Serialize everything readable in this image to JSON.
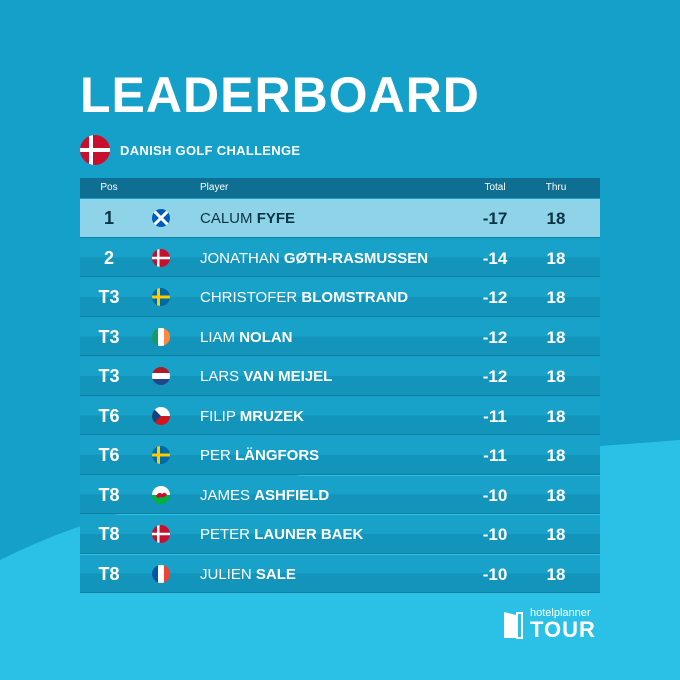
{
  "header": {
    "title": "LEADERBOARD",
    "event_name": "DANISH GOLF CHALLENGE",
    "event_flag": "denmark"
  },
  "columns": {
    "pos": "Pos",
    "player": "Player",
    "total": "Total",
    "thru": "Thru"
  },
  "rows": [
    {
      "pos": "1",
      "flag": "scotland",
      "first": "CALUM",
      "last": "FYFE",
      "total": "-17",
      "thru": "18",
      "highlighted": true
    },
    {
      "pos": "2",
      "flag": "denmark",
      "first": "JONATHAN",
      "last": "GØTH-RASMUSSEN",
      "total": "-14",
      "thru": "18"
    },
    {
      "pos": "T3",
      "flag": "sweden",
      "first": "CHRISTOFER",
      "last": "BLOMSTRAND",
      "total": "-12",
      "thru": "18"
    },
    {
      "pos": "T3",
      "flag": "ireland",
      "first": "LIAM",
      "last": "NOLAN",
      "total": "-12",
      "thru": "18"
    },
    {
      "pos": "T3",
      "flag": "netherlands",
      "first": "LARS",
      "last": "VAN MEIJEL",
      "total": "-12",
      "thru": "18"
    },
    {
      "pos": "T6",
      "flag": "czechia",
      "first": "FILIP",
      "last": "MRUZEK",
      "total": "-11",
      "thru": "18"
    },
    {
      "pos": "T6",
      "flag": "sweden",
      "first": "PER",
      "last": "LÄNGFORS",
      "total": "-11",
      "thru": "18"
    },
    {
      "pos": "T8",
      "flag": "wales",
      "first": "JAMES",
      "last": "ASHFIELD",
      "total": "-10",
      "thru": "18"
    },
    {
      "pos": "T8",
      "flag": "denmark",
      "first": "PETER",
      "last": "LAUNER BAEK",
      "total": "-10",
      "thru": "18"
    },
    {
      "pos": "T8",
      "flag": "france",
      "first": "JULIEN",
      "last": "SALE",
      "total": "-10",
      "thru": "18"
    }
  ],
  "logo": {
    "top": "hotelplanner",
    "bottom": "TOUR"
  },
  "colors": {
    "background": "#17a2cc",
    "highlight_row": "#8ed3e8",
    "header_bar": "#0e6f93"
  }
}
